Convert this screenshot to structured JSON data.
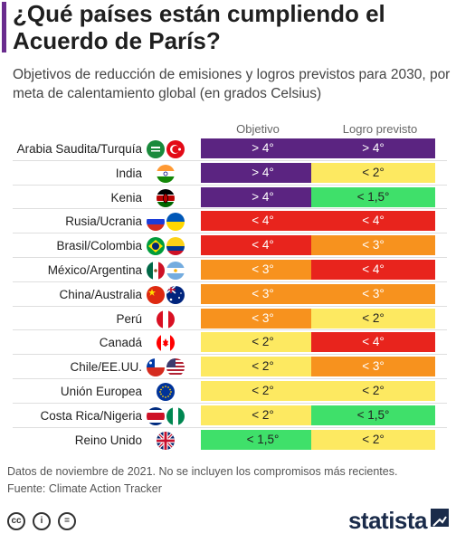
{
  "title": "¿Qué países están cumpliendo el Acuerdo de París?",
  "subtitle": "Objetivos de reducción de emisiones y logros previstos para 2030, por meta de calentamiento global (en grados Celsius)",
  "colors": {
    "accent": "#6a2c8e",
    "over4": "#5b2481",
    "lt4": "#e8241d",
    "lt3": "#f7921e",
    "lt2": "#fde961",
    "lt15": "#3fe06a"
  },
  "chart_data": {
    "type": "table",
    "columns": [
      "Objetivo",
      "Logro previsto"
    ],
    "rows": [
      {
        "country": "Arabia Saudita/Turquía",
        "flags": [
          "saudi-arabia-flag-icon",
          "turkey-flag-icon"
        ],
        "objetivo": "> 4°",
        "logro": "> 4°"
      },
      {
        "country": "India",
        "flags": [
          "india-flag-icon"
        ],
        "objetivo": "> 4°",
        "logro": "< 2°"
      },
      {
        "country": "Kenia",
        "flags": [
          "kenya-flag-icon"
        ],
        "objetivo": "> 4°",
        "logro": "< 1,5°"
      },
      {
        "country": "Rusia/Ucrania",
        "flags": [
          "russia-flag-icon",
          "ukraine-flag-icon"
        ],
        "objetivo": "< 4°",
        "logro": "< 4°"
      },
      {
        "country": "Brasil/Colombia",
        "flags": [
          "brazil-flag-icon",
          "colombia-flag-icon"
        ],
        "objetivo": "< 4°",
        "logro": "< 3°"
      },
      {
        "country": "México/Argentina",
        "flags": [
          "mexico-flag-icon",
          "argentina-flag-icon"
        ],
        "objetivo": "< 3°",
        "logro": "< 4°"
      },
      {
        "country": "China/Australia",
        "flags": [
          "china-flag-icon",
          "australia-flag-icon"
        ],
        "objetivo": "< 3°",
        "logro": "< 3°"
      },
      {
        "country": "Perú",
        "flags": [
          "peru-flag-icon"
        ],
        "objetivo": "< 3°",
        "logro": "< 2°"
      },
      {
        "country": "Canadá",
        "flags": [
          "canada-flag-icon"
        ],
        "objetivo": "< 2°",
        "logro": "< 4°"
      },
      {
        "country": "Chile/EE.UU.",
        "flags": [
          "chile-flag-icon",
          "usa-flag-icon"
        ],
        "objetivo": "< 2°",
        "logro": "< 3°"
      },
      {
        "country": "Unión Europea",
        "flags": [
          "eu-flag-icon"
        ],
        "objetivo": "< 2°",
        "logro": "< 2°"
      },
      {
        "country": "Costa Rica/Nigeria",
        "flags": [
          "costa-rica-flag-icon",
          "nigeria-flag-icon"
        ],
        "objetivo": "< 2°",
        "logro": "< 1,5°"
      },
      {
        "country": "Reino Unido",
        "flags": [
          "uk-flag-icon"
        ],
        "objetivo": "< 1,5°",
        "logro": "< 2°"
      }
    ]
  },
  "footnote_line1": "Datos de noviembre de 2021. No se incluyen los compromisos más recientes.",
  "footnote_line2": "Fuente: Climate Action Tracker",
  "license_icons": [
    "cc-icon",
    "by-icon",
    "nd-icon"
  ],
  "brand": "statista"
}
